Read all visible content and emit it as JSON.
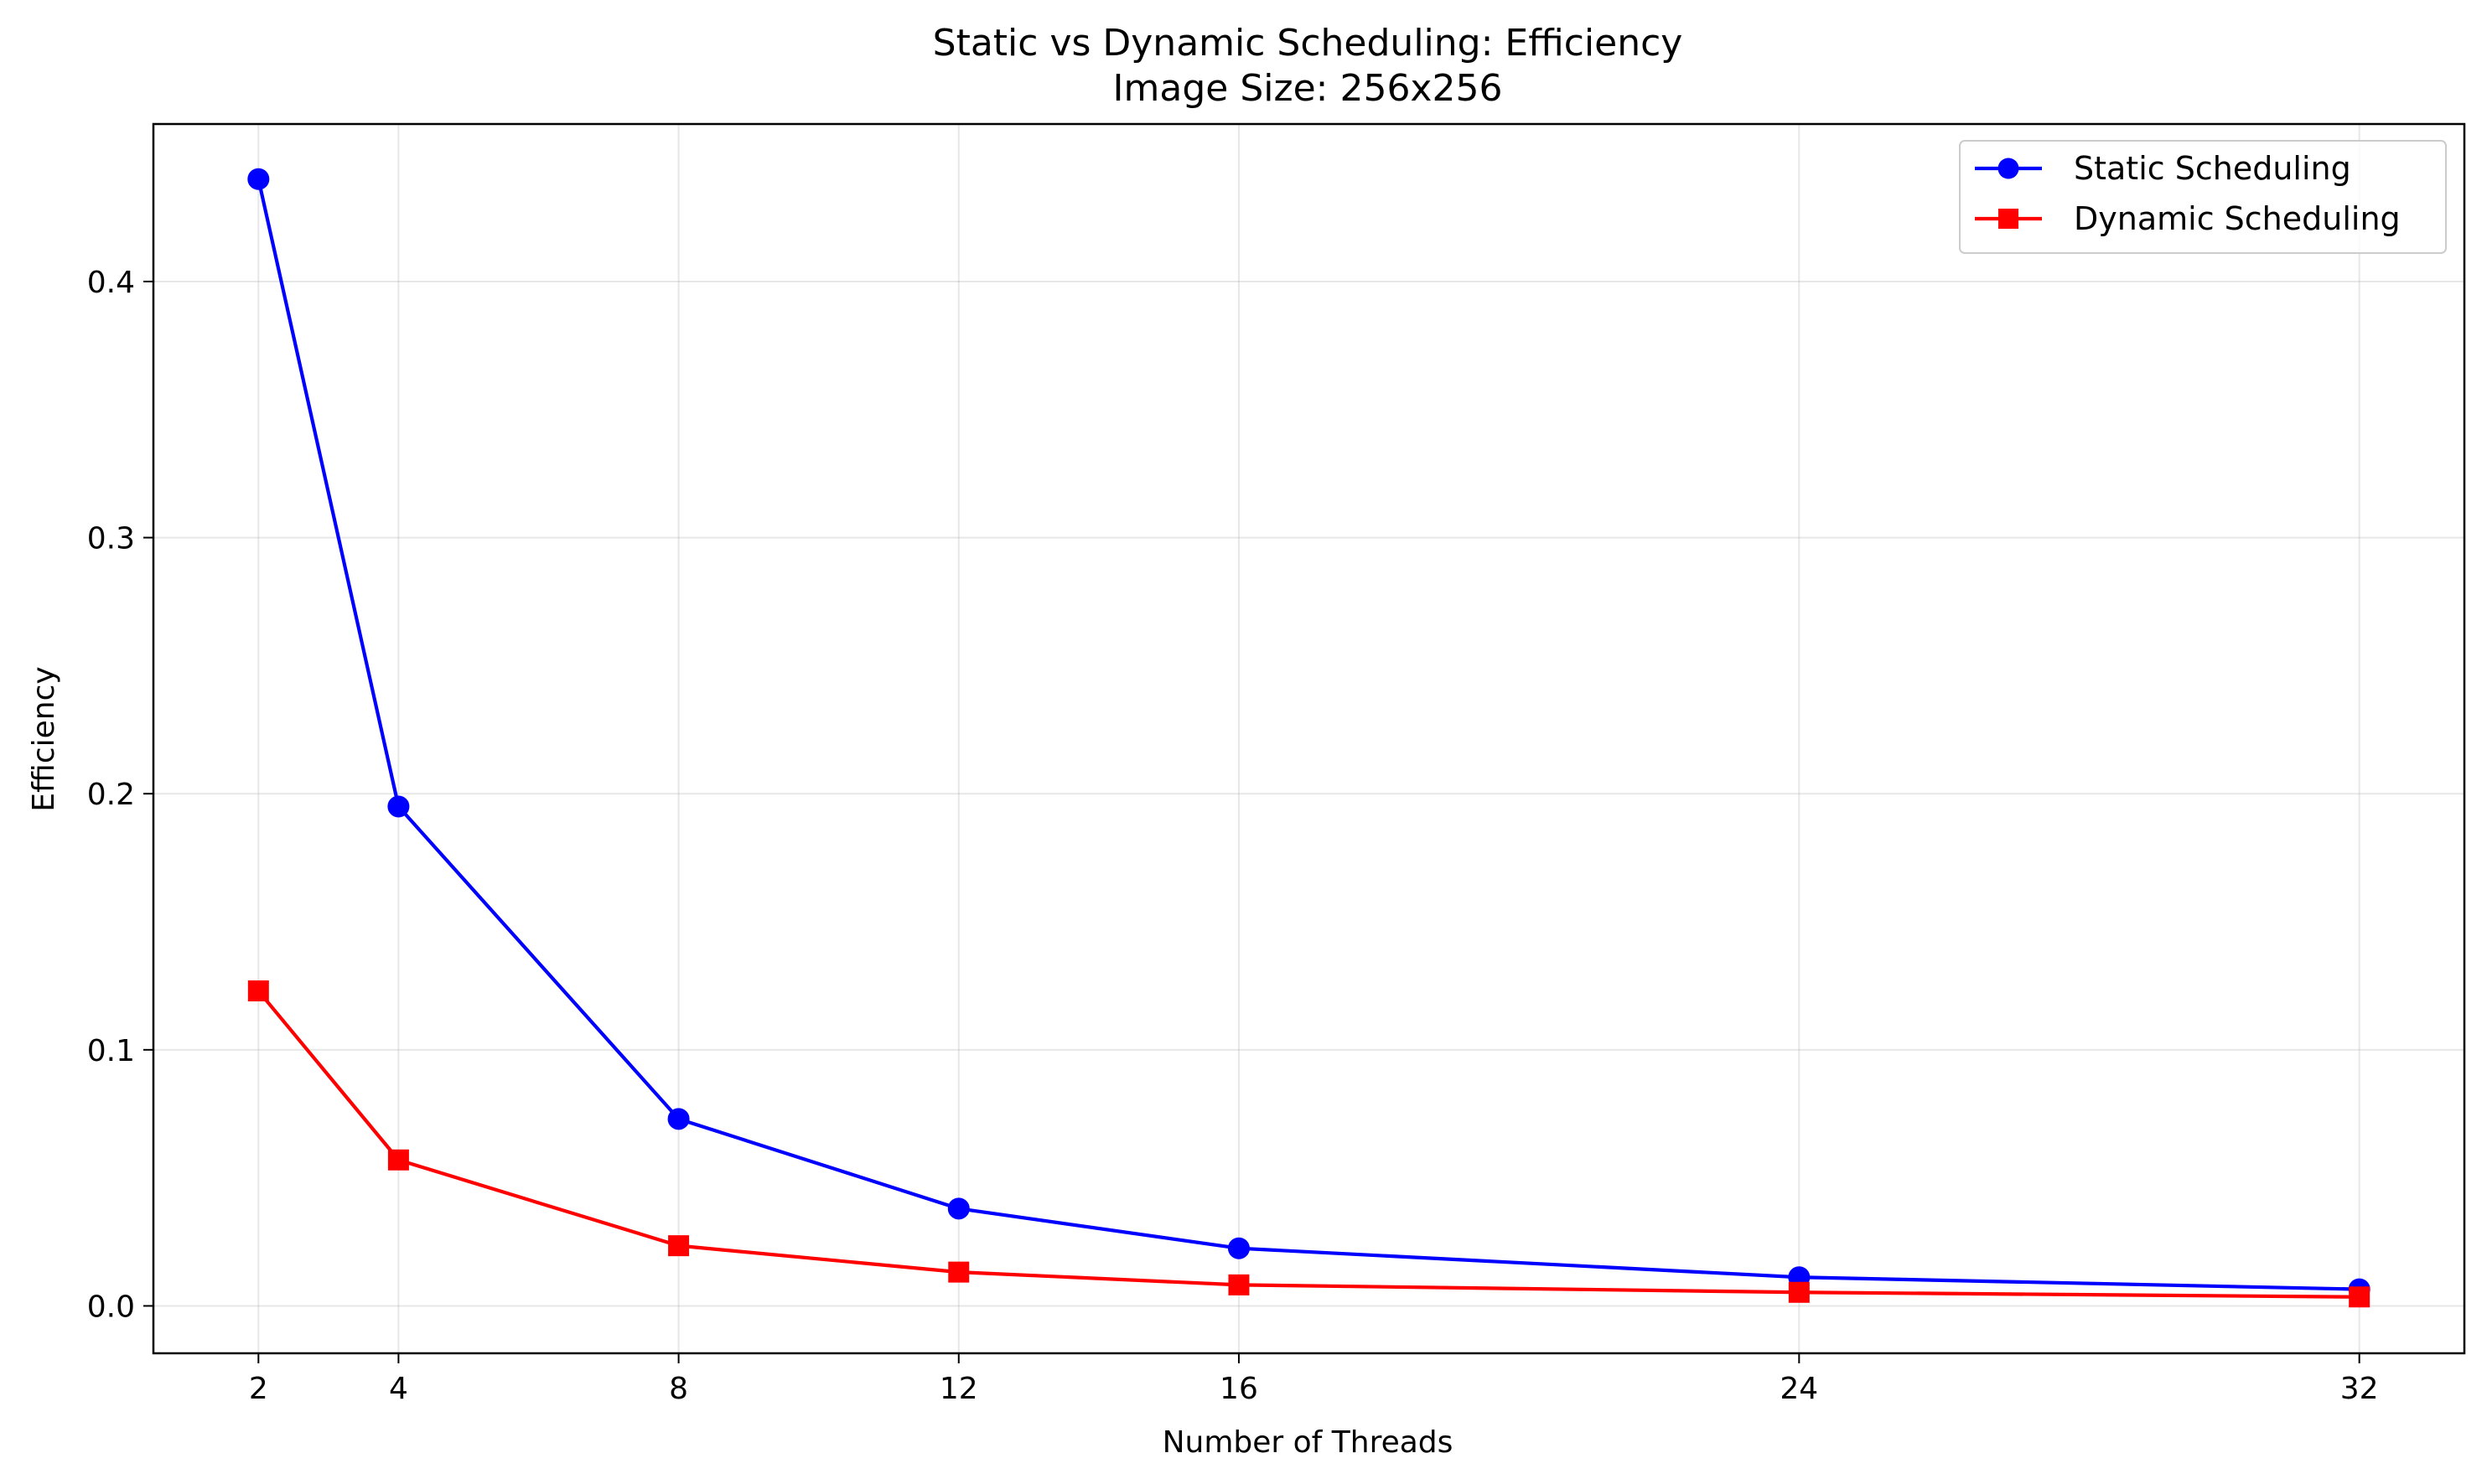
{
  "chart_data": {
    "type": "line",
    "title": "Static vs Dynamic Scheduling: Efficiency",
    "subtitle": "Image Size: 256x256",
    "xlabel": "Number of Threads",
    "ylabel": "Efficiency",
    "x": [
      2,
      4,
      8,
      12,
      16,
      24,
      32
    ],
    "xticks": [
      "2",
      "4",
      "8",
      "12",
      "16",
      "24",
      "32"
    ],
    "xlim": [
      0.5,
      33.5
    ],
    "ylim": [
      -0.0185,
      0.4615
    ],
    "yticks": [
      "0.0",
      "0.1",
      "0.2",
      "0.3",
      "0.4"
    ],
    "ytick_values": [
      0.0,
      0.1,
      0.2,
      0.3,
      0.4
    ],
    "grid": true,
    "legend_position": "top-right",
    "series": [
      {
        "name": "Static Scheduling",
        "color": "#0000ff",
        "marker": "circle",
        "values": [
          0.44,
          0.195,
          0.073,
          0.038,
          0.0225,
          0.0112,
          0.0065
        ]
      },
      {
        "name": "Dynamic Scheduling",
        "color": "#ff0000",
        "marker": "square",
        "values": [
          0.123,
          0.057,
          0.0235,
          0.0132,
          0.0082,
          0.0053,
          0.0035
        ]
      }
    ]
  }
}
